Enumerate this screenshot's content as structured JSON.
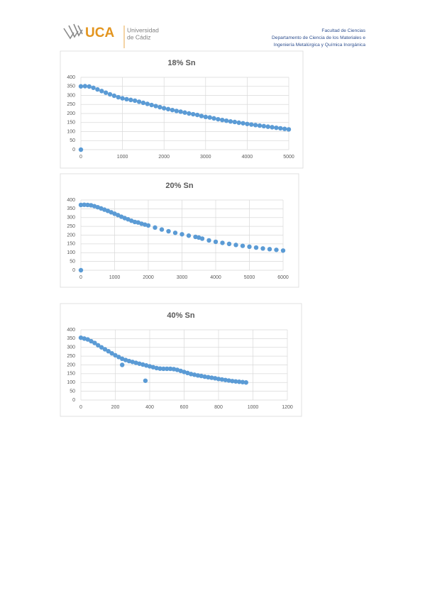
{
  "header": {
    "logo": {
      "acronym": "UCA",
      "name_line1": "Universidad",
      "name_line2": "de Cádiz"
    },
    "lines": [
      "Facultad de Ciencias",
      "Departamento de Ciencia de los Materiales e",
      "Ingeniería Metalúrgica y Química Inorgánica"
    ]
  },
  "chart_data": [
    {
      "type": "scatter",
      "title": "18% Sn",
      "color": "#5b9bd5",
      "grid": true,
      "xlim": [
        0,
        5000
      ],
      "xticks": [
        0,
        1000,
        2000,
        3000,
        4000,
        5000
      ],
      "ylim": [
        0,
        400
      ],
      "yticks": [
        0,
        50,
        100,
        150,
        200,
        250,
        300,
        350,
        400
      ],
      "x": [
        0,
        0,
        100,
        200,
        300,
        400,
        500,
        600,
        700,
        800,
        900,
        1000,
        1100,
        1200,
        1300,
        1400,
        1500,
        1600,
        1700,
        1800,
        1900,
        2000,
        2100,
        2200,
        2300,
        2400,
        2500,
        2600,
        2700,
        2800,
        2900,
        3000,
        3100,
        3200,
        3300,
        3400,
        3500,
        3600,
        3700,
        3800,
        3900,
        4000,
        4100,
        4200,
        4300,
        4400,
        4500,
        4600,
        4700,
        4800,
        4900,
        5000
      ],
      "values": [
        0,
        350,
        351,
        349,
        342,
        333,
        324,
        315,
        306,
        298,
        290,
        284,
        279,
        275,
        271,
        265,
        259,
        253,
        247,
        241,
        235,
        229,
        224,
        219,
        214,
        210,
        205,
        200,
        196,
        192,
        186,
        181,
        178,
        173,
        168,
        164,
        160,
        156,
        153,
        149,
        146,
        142,
        139,
        136,
        133,
        130,
        127,
        124,
        121,
        118,
        115,
        112
      ]
    },
    {
      "type": "scatter",
      "title": "20% Sn",
      "color": "#5b9bd5",
      "grid": true,
      "xlim": [
        0,
        6000
      ],
      "xticks": [
        0,
        1000,
        2000,
        3000,
        4000,
        5000,
        6000
      ],
      "ylim": [
        0,
        400
      ],
      "yticks": [
        0,
        50,
        100,
        150,
        200,
        250,
        300,
        350,
        400
      ],
      "x": [
        0,
        0,
        100,
        200,
        300,
        400,
        500,
        600,
        700,
        800,
        900,
        1000,
        1100,
        1200,
        1300,
        1400,
        1500,
        1600,
        1700,
        1800,
        1900,
        2000,
        2200,
        2400,
        2600,
        2800,
        3000,
        3200,
        3400,
        3500,
        3600,
        3800,
        4000,
        4200,
        4400,
        4600,
        4800,
        5000,
        5200,
        5400,
        5600,
        5800,
        6000
      ],
      "values": [
        0,
        372,
        373,
        372,
        370,
        365,
        359,
        352,
        345,
        338,
        330,
        322,
        314,
        305,
        297,
        290,
        282,
        275,
        272,
        265,
        260,
        255,
        243,
        232,
        222,
        213,
        205,
        197,
        190,
        186,
        180,
        170,
        162,
        156,
        150,
        144,
        139,
        134,
        129,
        124,
        120,
        116,
        112
      ]
    },
    {
      "type": "scatter",
      "title": "40% Sn",
      "color": "#5b9bd5",
      "grid": true,
      "xlim": [
        0,
        1200
      ],
      "xticks": [
        0,
        200,
        400,
        600,
        800,
        1000,
        1200
      ],
      "ylim": [
        0,
        400
      ],
      "yticks": [
        0,
        50,
        100,
        150,
        200,
        250,
        300,
        350,
        400
      ],
      "x": [
        240,
        375,
        0,
        20,
        40,
        60,
        80,
        100,
        120,
        140,
        160,
        180,
        200,
        220,
        240,
        260,
        280,
        300,
        320,
        340,
        360,
        380,
        400,
        420,
        440,
        460,
        480,
        500,
        520,
        540,
        560,
        580,
        600,
        620,
        640,
        660,
        680,
        700,
        720,
        740,
        760,
        780,
        800,
        820,
        840,
        860,
        880,
        900,
        920,
        940,
        960
      ],
      "values": [
        200,
        110,
        355,
        350,
        345,
        335,
        325,
        312,
        300,
        289,
        278,
        266,
        255,
        245,
        235,
        228,
        222,
        217,
        212,
        207,
        202,
        197,
        192,
        187,
        182,
        179,
        178,
        178,
        178,
        176,
        172,
        166,
        160,
        154,
        148,
        144,
        140,
        137,
        133,
        130,
        127,
        124,
        120,
        117,
        114,
        111,
        108,
        106,
        104,
        102,
        100
      ]
    }
  ]
}
